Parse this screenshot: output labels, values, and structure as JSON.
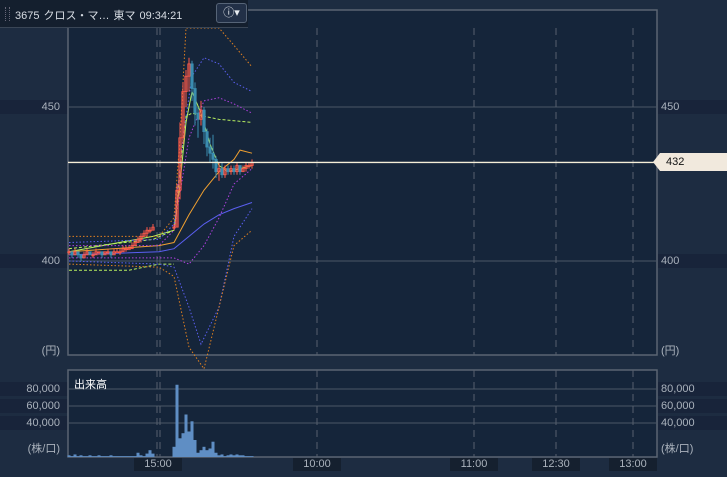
{
  "header": {
    "code": "3675",
    "name": "クロス・マ…",
    "market": "東マ",
    "time": "09:34:21",
    "info_icon": "info-dropdown-icon"
  },
  "price_axis": {
    "ticks": [
      450,
      400
    ],
    "unit": "(円)",
    "current": "432"
  },
  "volume_axis": {
    "title": "出来高",
    "ticks": [
      "80,000",
      "60,000",
      "40,000"
    ],
    "unit": "(株/口)"
  },
  "time_axis": {
    "labels": [
      "15:00",
      "10:00",
      "11:00",
      "12:30",
      "13:00"
    ]
  },
  "colors": {
    "up": "#ff5a4a",
    "down": "#3b8db0",
    "volume": "#5f8ec4",
    "current_line": "#f5eed8"
  },
  "chart_data": {
    "type": "candlestick",
    "ylim": [
      369,
      482
    ],
    "candles": [
      [
        403,
        404,
        402,
        403
      ],
      [
        403,
        403,
        401,
        402
      ],
      [
        402,
        404,
        402,
        403
      ],
      [
        403,
        403,
        401,
        402
      ],
      [
        402,
        402,
        400,
        401
      ],
      [
        401,
        403,
        401,
        402
      ],
      [
        402,
        404,
        402,
        403
      ],
      [
        403,
        403,
        402,
        402
      ],
      [
        402,
        403,
        401,
        402
      ],
      [
        402,
        404,
        402,
        403
      ],
      [
        403,
        403,
        402,
        403
      ],
      [
        403,
        403,
        401,
        402
      ],
      [
        402,
        403,
        402,
        403
      ],
      [
        403,
        404,
        402,
        403
      ],
      [
        403,
        403,
        401,
        402
      ],
      [
        402,
        404,
        402,
        403
      ],
      [
        403,
        404,
        403,
        403
      ],
      [
        403,
        404,
        402,
        403
      ],
      [
        403,
        405,
        403,
        404
      ],
      [
        404,
        405,
        403,
        404
      ],
      [
        404,
        405,
        404,
        404
      ],
      [
        404,
        406,
        404,
        405
      ],
      [
        405,
        407,
        405,
        406
      ],
      [
        406,
        408,
        406,
        407
      ],
      [
        407,
        409,
        406,
        408
      ],
      [
        408,
        410,
        408,
        409
      ],
      [
        409,
        411,
        408,
        410
      ],
      [
        410,
        411,
        409,
        410
      ],
      [
        410,
        412,
        410,
        411
      ],
      null,
      null,
      null,
      null,
      null,
      null,
      [
        411,
        412,
        410,
        411
      ],
      [
        411,
        425,
        411,
        423
      ],
      [
        423,
        445,
        420,
        440
      ],
      [
        440,
        458,
        438,
        455
      ],
      [
        455,
        462,
        450,
        460
      ],
      [
        460,
        466,
        455,
        464
      ],
      [
        464,
        465,
        452,
        456
      ],
      [
        456,
        458,
        444,
        448
      ],
      [
        448,
        450,
        440,
        446
      ],
      [
        446,
        452,
        444,
        449
      ],
      [
        449,
        450,
        438,
        442
      ],
      [
        442,
        443,
        434,
        437
      ],
      [
        437,
        440,
        432,
        435
      ],
      [
        435,
        441,
        430,
        433
      ],
      [
        433,
        434,
        427,
        429
      ],
      [
        429,
        432,
        426,
        430
      ],
      [
        430,
        432,
        427,
        428
      ],
      [
        428,
        431,
        427,
        430
      ],
      [
        430,
        431,
        428,
        429
      ],
      [
        429,
        431,
        428,
        430
      ],
      [
        430,
        431,
        428,
        429
      ],
      [
        429,
        432,
        428,
        431
      ],
      [
        431,
        431,
        428,
        429
      ],
      [
        429,
        431,
        429,
        430
      ],
      [
        430,
        432,
        429,
        431
      ],
      [
        431,
        432,
        430,
        431
      ],
      [
        431,
        433,
        430,
        432
      ]
    ],
    "volume": [
      2000,
      1000,
      3000,
      1000,
      2000,
      1000,
      1000,
      2000,
      1000,
      1000,
      2000,
      1000,
      1000,
      1000,
      2000,
      1000,
      1000,
      1000,
      1000,
      1000,
      1000,
      1000,
      1000,
      5000,
      2000,
      1000,
      4000,
      8000,
      4000,
      0,
      0,
      0,
      0,
      0,
      0,
      12000,
      85000,
      22000,
      28000,
      50000,
      30000,
      42000,
      20000,
      5000,
      8000,
      12000,
      8000,
      10000,
      18000,
      5000,
      2000,
      3000,
      1000,
      2000,
      3000,
      2000,
      3000,
      2000,
      2000,
      1000,
      1000,
      1000
    ],
    "volume_ylim": [
      0,
      100000
    ],
    "lines": [
      {
        "color": "#b8f060",
        "style": "solid",
        "points": [
          [
            0,
            403
          ],
          [
            28,
            408
          ],
          [
            35,
            410
          ],
          [
            37,
            425
          ],
          [
            39,
            445
          ],
          [
            41,
            455
          ],
          [
            44,
            448
          ],
          [
            47,
            438
          ],
          [
            50,
            431
          ],
          [
            53,
            429
          ],
          [
            61,
            431
          ]
        ]
      },
      {
        "color": "#f0a030",
        "style": "solid",
        "points": [
          [
            0,
            403
          ],
          [
            30,
            405
          ],
          [
            35,
            406
          ],
          [
            40,
            415
          ],
          [
            45,
            423
          ],
          [
            50,
            429
          ],
          [
            55,
            433
          ],
          [
            57,
            436
          ],
          [
            61,
            435
          ]
        ]
      },
      {
        "color": "#5a5ff0",
        "style": "solid",
        "points": [
          [
            0,
            402
          ],
          [
            30,
            403
          ],
          [
            35,
            404
          ],
          [
            40,
            408
          ],
          [
            45,
            412
          ],
          [
            50,
            415
          ],
          [
            55,
            417
          ],
          [
            61,
            419
          ]
        ]
      },
      {
        "color": "#b8f060",
        "style": "dashed",
        "points": [
          [
            0,
            404
          ],
          [
            28,
            407
          ],
          [
            35,
            410
          ],
          [
            37,
            430
          ],
          [
            39,
            447
          ],
          [
            41,
            448
          ],
          [
            45,
            447
          ],
          [
            50,
            446
          ],
          [
            61,
            445
          ]
        ]
      },
      {
        "color": "#b8f060",
        "style": "dashed",
        "points": [
          [
            0,
            397
          ],
          [
            20,
            397
          ],
          [
            30,
            399
          ],
          [
            35,
            399
          ]
        ]
      },
      {
        "color": "#b040e0",
        "style": "dotted",
        "points": [
          [
            0,
            405
          ],
          [
            30,
            405
          ],
          [
            35,
            410
          ],
          [
            40,
            440
          ],
          [
            45,
            452
          ],
          [
            50,
            453
          ],
          [
            55,
            451
          ],
          [
            61,
            448
          ]
        ]
      },
      {
        "color": "#b040e0",
        "style": "dotted",
        "points": [
          [
            0,
            401
          ],
          [
            30,
            401
          ],
          [
            35,
            401
          ],
          [
            40,
            399
          ],
          [
            45,
            405
          ],
          [
            50,
            414
          ],
          [
            55,
            425
          ],
          [
            61,
            430
          ]
        ]
      },
      {
        "color": "#5a5ff0",
        "style": "dotted",
        "points": [
          [
            0,
            406
          ],
          [
            30,
            407
          ],
          [
            35,
            412
          ],
          [
            38,
            440
          ],
          [
            41,
            460
          ],
          [
            45,
            466
          ],
          [
            50,
            464
          ],
          [
            55,
            458
          ],
          [
            61,
            455
          ]
        ]
      },
      {
        "color": "#5a5ff0",
        "style": "dotted",
        "points": [
          [
            0,
            400
          ],
          [
            30,
            399
          ],
          [
            35,
            398
          ],
          [
            40,
            385
          ],
          [
            44,
            373
          ],
          [
            50,
            385
          ],
          [
            55,
            408
          ],
          [
            61,
            417
          ]
        ]
      },
      {
        "color": "#e08020",
        "style": "dotted",
        "points": [
          [
            0,
            408
          ],
          [
            30,
            408
          ],
          [
            35,
            414
          ],
          [
            37,
            440
          ],
          [
            39,
            480
          ],
          [
            50,
            482
          ],
          [
            55,
            470
          ],
          [
            61,
            463
          ]
        ]
      },
      {
        "color": "#e08020",
        "style": "dotted",
        "points": [
          [
            0,
            399
          ],
          [
            30,
            398
          ],
          [
            35,
            395
          ],
          [
            40,
            372
          ],
          [
            45,
            365
          ],
          [
            50,
            385
          ],
          [
            55,
            405
          ],
          [
            61,
            410
          ]
        ]
      }
    ]
  }
}
